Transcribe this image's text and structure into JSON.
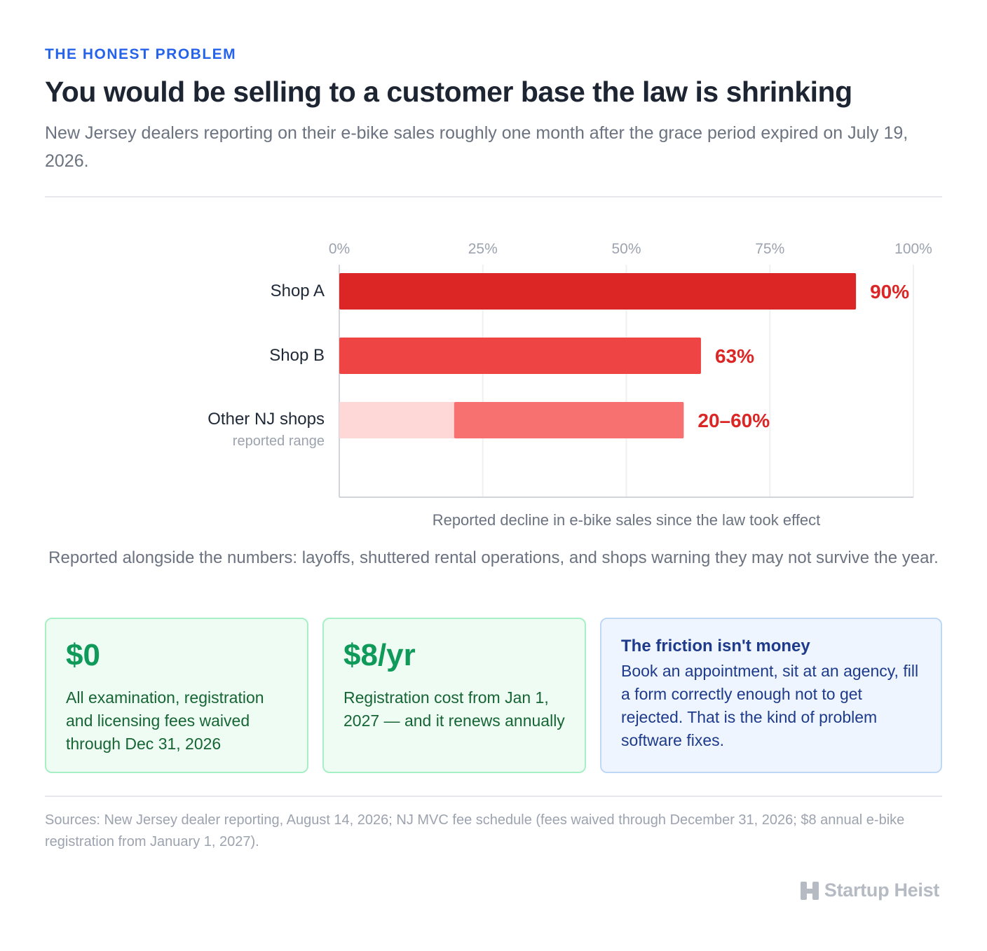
{
  "header": {
    "eyebrow": "THE HONEST PROBLEM",
    "title": "You would be selling to a customer base the law is shrinking",
    "subtitle": "New Jersey dealers reporting on their e-bike sales roughly one month after the grace period expired on July 19, 2026."
  },
  "chart_data": {
    "type": "bar",
    "orientation": "horizontal",
    "categories": [
      "Shop A",
      "Shop B",
      "Other NJ shops"
    ],
    "category_sublabels": [
      "",
      "",
      "reported range"
    ],
    "values": [
      90,
      63,
      [
        20,
        60
      ]
    ],
    "value_labels": [
      "90%",
      "63%",
      "20–60%"
    ],
    "xlabel": "Reported decline in e-bike sales since the law took effect",
    "xlim": [
      0,
      100
    ],
    "ticks": [
      0,
      25,
      50,
      75,
      100
    ],
    "tick_labels": [
      "0%",
      "25%",
      "50%",
      "75%",
      "100%"
    ],
    "grid": true,
    "colors": {
      "shop_a": "#dc2626",
      "shop_b": "#ef4444",
      "range_main": "#f87171",
      "range_light": "#fed7d7",
      "value_label": "#dc2626",
      "grid": "#eef0f2",
      "axis": "#d1d5db"
    }
  },
  "note": "Reported alongside the numbers: layoffs, shuttered rental operations, and shops warning they may not survive the year.",
  "cards": [
    {
      "big": "$0",
      "desc": "All examination, registration and licensing fees waived through Dec 31, 2026"
    },
    {
      "big": "$8/yr",
      "desc": "Registration cost from Jan 1, 2027 — and it renews annually"
    },
    {
      "heading": "The friction isn't money",
      "desc": "Book an appointment, sit at an agency, fill a form correctly enough not to get rejected. That is the kind of problem software fixes."
    }
  ],
  "sources": "Sources: New Jersey dealer reporting, August 14, 2026; NJ MVC fee schedule (fees waived through December 31, 2026; $8 annual e-bike registration from January 1, 2027).",
  "brand": {
    "name": "Startup Heist",
    "icon": "h-logo-icon"
  }
}
